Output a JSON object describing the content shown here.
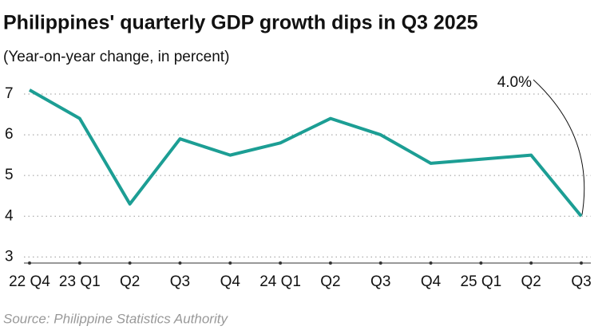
{
  "chart_data": {
    "type": "line",
    "title": "Philippines' quarterly GDP growth dips in Q3 2025",
    "subtitle": "(Year-on-year change, in percent)",
    "source": "Source: Philippine Statistics Authority",
    "categories": [
      "22 Q4",
      "23 Q1",
      "Q2",
      "Q3",
      "Q4",
      "24 Q1",
      "Q2",
      "Q3",
      "Q4",
      "25 Q1",
      "Q2",
      "Q3"
    ],
    "values": [
      7.1,
      6.4,
      4.3,
      5.9,
      5.5,
      5.8,
      6.4,
      6.0,
      5.3,
      5.4,
      5.5,
      4.0
    ],
    "value_labels": [
      null,
      null,
      null,
      null,
      null,
      null,
      null,
      null,
      null,
      null,
      null,
      "4.0%"
    ],
    "color": "#1c9e94",
    "ylim": [
      2.85,
      7.45
    ],
    "yticks": [
      3,
      4,
      5,
      6,
      7
    ],
    "grid": true
  }
}
